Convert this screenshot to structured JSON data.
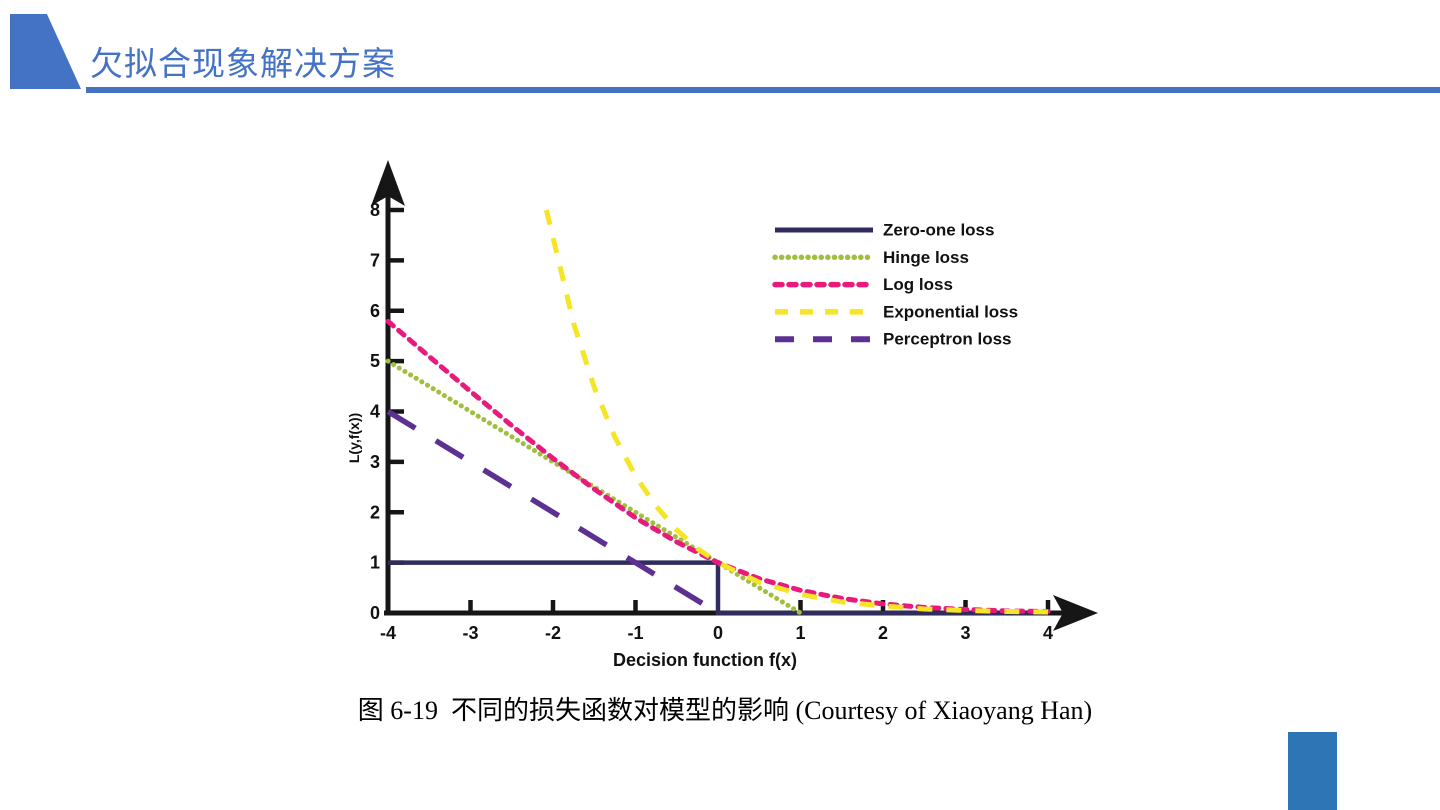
{
  "header": {
    "title": "欠拟合现象解决方案"
  },
  "figure": {
    "caption": "图 6-19  不同的损失函数对模型的影响 (Courtesy of Xiaoyang Han)"
  },
  "accents": {
    "header_blue": "#4472c4",
    "corner_rect_blue": "#2e75b6"
  },
  "chart_data": {
    "type": "line",
    "title": "",
    "xlabel": "Decision function f(x)",
    "ylabel": "L(y,f(x))",
    "xlim": [
      -4,
      4
    ],
    "ylim": [
      0,
      8
    ],
    "x_ticks": [
      -4,
      -3,
      -2,
      -1,
      0,
      1,
      2,
      3,
      4
    ],
    "y_ticks": [
      0,
      1,
      2,
      3,
      4,
      5,
      6,
      7,
      8
    ],
    "x_tick_marks": [
      -3,
      -2,
      -1,
      1,
      2,
      3,
      4
    ],
    "y_tick_marks": [
      1,
      2,
      3,
      4,
      5,
      6,
      7,
      8
    ],
    "grid": false,
    "legend_position": "upper-right",
    "axis_color": "#161616",
    "series": [
      {
        "name": "Zero-one loss",
        "color": "#302c5e",
        "style": "solid",
        "points": [
          [
            -4,
            1
          ],
          [
            0,
            1
          ],
          [
            0,
            0
          ],
          [
            4,
            0
          ]
        ]
      },
      {
        "name": "Hinge loss",
        "color": "#a0bf3e",
        "style": "dotted",
        "points": [
          [
            -4,
            5
          ],
          [
            1,
            0
          ]
        ]
      },
      {
        "name": "Log loss",
        "color": "#e81b7d",
        "style": "dash",
        "points": [
          [
            -4,
            5.79
          ],
          [
            -3.5,
            5.09
          ],
          [
            -3,
            4.4
          ],
          [
            -2.5,
            3.72
          ],
          [
            -2,
            3.07
          ],
          [
            -1.5,
            2.46
          ],
          [
            -1,
            1.89
          ],
          [
            -0.5,
            1.41
          ],
          [
            0,
            1
          ],
          [
            0.5,
            0.68
          ],
          [
            1,
            0.45
          ],
          [
            1.5,
            0.29
          ],
          [
            2,
            0.18
          ],
          [
            2.5,
            0.11
          ],
          [
            3,
            0.07
          ],
          [
            3.5,
            0.04
          ],
          [
            4,
            0.03
          ]
        ]
      },
      {
        "name": "Exponential loss",
        "color": "#f6e427",
        "style": "long-dash",
        "points": [
          [
            -2.08,
            8
          ],
          [
            -1.75,
            5.75
          ],
          [
            -1.5,
            4.48
          ],
          [
            -1.25,
            3.49
          ],
          [
            -1,
            2.72
          ],
          [
            -0.75,
            2.12
          ],
          [
            -0.5,
            1.65
          ],
          [
            -0.25,
            1.28
          ],
          [
            0,
            1
          ],
          [
            0.5,
            0.61
          ],
          [
            1,
            0.37
          ],
          [
            1.5,
            0.22
          ],
          [
            2,
            0.14
          ],
          [
            2.5,
            0.08
          ],
          [
            3,
            0.05
          ],
          [
            3.5,
            0.03
          ],
          [
            4,
            0.02
          ]
        ]
      },
      {
        "name": "Perceptron loss",
        "color": "#5c3192",
        "style": "xlong-dash",
        "points": [
          [
            -4,
            4
          ],
          [
            0,
            0
          ]
        ]
      }
    ]
  }
}
